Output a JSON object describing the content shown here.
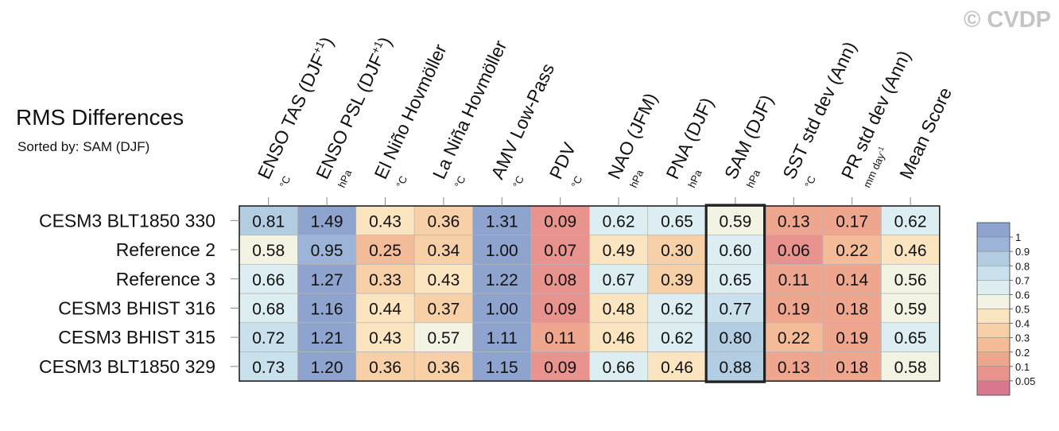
{
  "watermark": "© CVDP",
  "chart_data": {
    "type": "heatmap",
    "title": "RMS Differences",
    "subtitle": "Sorted by: SAM (DJF)",
    "highlight_column": 8,
    "columns": [
      {
        "label": "ENSO TAS (DJF",
        "sup": "+1",
        "close": ")",
        "unit": "°C"
      },
      {
        "label": "ENSO PSL (DJF",
        "sup": "+1",
        "close": ")",
        "unit": "hPa"
      },
      {
        "label": "El Niño Hovmöller",
        "unit": "°C"
      },
      {
        "label": "La Niña Hovmöller",
        "unit": "°C"
      },
      {
        "label": "AMV Low-Pass",
        "unit": "°C"
      },
      {
        "label": "PDV",
        "unit": "°C"
      },
      {
        "label": "NAO (JFM)",
        "unit": "hPa"
      },
      {
        "label": "PNA (DJF)",
        "unit": "hPa"
      },
      {
        "label": "SAM (DJF)",
        "unit": "hPa"
      },
      {
        "label": "SST std dev (Ann)",
        "unit": "°C"
      },
      {
        "label": "PR std dev (Ann)",
        "unit": "mm day",
        "unit_sup": "-1"
      },
      {
        "label": "Mean Score",
        "unit": ""
      }
    ],
    "rows": [
      {
        "label": "CESM3 BLT1850 330",
        "values": [
          0.81,
          1.49,
          0.43,
          0.36,
          1.31,
          0.09,
          0.62,
          0.65,
          0.59,
          0.13,
          0.17,
          0.62
        ],
        "text": [
          "0.81",
          "1.49",
          "0.43",
          "0.36",
          "1.31",
          "0.09",
          "0.62",
          "0.65",
          "0.59",
          "0.13",
          "0.17",
          "0.62"
        ]
      },
      {
        "label": "Reference 2",
        "values": [
          0.58,
          0.95,
          0.25,
          0.34,
          1.0,
          0.07,
          0.49,
          0.3,
          0.6,
          0.06,
          0.22,
          0.46
        ],
        "text": [
          "0.58",
          "0.95",
          "0.25",
          "0.34",
          "1.00",
          "0.07",
          "0.49",
          "0.30",
          "0.60",
          "0.06",
          "0.22",
          "0.46"
        ]
      },
      {
        "label": "Reference 3",
        "values": [
          0.66,
          1.27,
          0.33,
          0.43,
          1.22,
          0.08,
          0.67,
          0.39,
          0.65,
          0.11,
          0.14,
          0.56
        ],
        "text": [
          "0.66",
          "1.27",
          "0.33",
          "0.43",
          "1.22",
          "0.08",
          "0.67",
          "0.39",
          "0.65",
          "0.11",
          "0.14",
          "0.56"
        ]
      },
      {
        "label": "CESM3 BHIST 316",
        "values": [
          0.68,
          1.16,
          0.44,
          0.37,
          1.0,
          0.09,
          0.48,
          0.62,
          0.77,
          0.19,
          0.18,
          0.59
        ],
        "text": [
          "0.68",
          "1.16",
          "0.44",
          "0.37",
          "1.00",
          "0.09",
          "0.48",
          "0.62",
          "0.77",
          "0.19",
          "0.18",
          "0.59"
        ]
      },
      {
        "label": "CESM3 BHIST 315",
        "values": [
          0.72,
          1.21,
          0.43,
          0.57,
          1.11,
          0.11,
          0.46,
          0.62,
          0.8,
          0.22,
          0.19,
          0.65
        ],
        "text": [
          "0.72",
          "1.21",
          "0.43",
          "0.57",
          "1.11",
          "0.11",
          "0.46",
          "0.62",
          "0.80",
          "0.22",
          "0.19",
          "0.65"
        ]
      },
      {
        "label": "CESM3 BLT1850 329",
        "values": [
          0.73,
          1.2,
          0.36,
          0.36,
          1.15,
          0.09,
          0.66,
          0.46,
          0.88,
          0.13,
          0.18,
          0.58
        ],
        "text": [
          "0.73",
          "1.20",
          "0.36",
          "0.36",
          "1.15",
          "0.09",
          "0.66",
          "0.46",
          "0.88",
          "0.13",
          "0.18",
          "0.58"
        ]
      }
    ],
    "colorbar": {
      "bounds": [
        0.05,
        0.1,
        0.2,
        0.3,
        0.4,
        0.5,
        0.6,
        0.7,
        0.8,
        0.9,
        1
      ],
      "labels": [
        "0.05",
        "0.1",
        "0.2",
        "0.3",
        "0.4",
        "0.5",
        "0.6",
        "0.7",
        "0.8",
        "0.9",
        "1"
      ],
      "colors": [
        "#d9788e",
        "#e8938e",
        "#efa68e",
        "#f4bb98",
        "#f8d0a8",
        "#fbe5c0",
        "#f3f3e4",
        "#ddeef2",
        "#c8e1ec",
        "#b2cde2",
        "#9cb4d8",
        "#8fa3cf"
      ]
    }
  }
}
